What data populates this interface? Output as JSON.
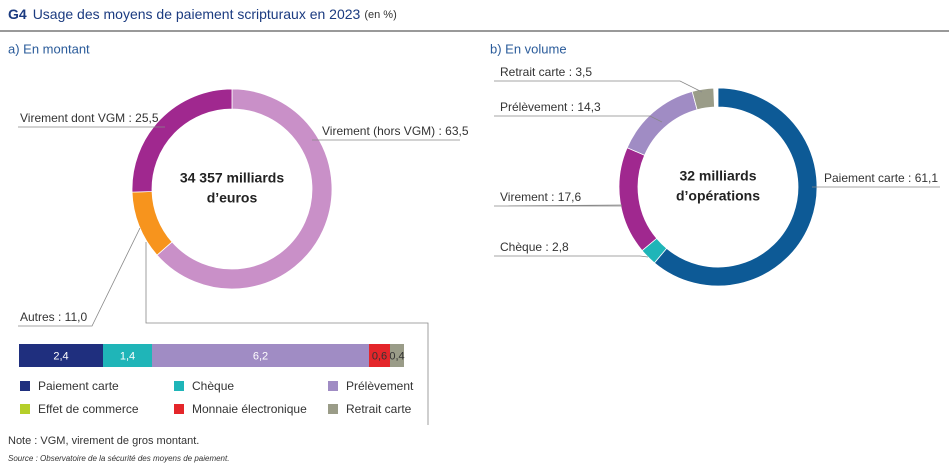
{
  "title_code": "G4",
  "title": "Usage des moyens de paiement scripturaux en 2023",
  "title_unit": "(en %)",
  "note": "Note : VGM, virement de gros montant.",
  "source": "Source : Observatoire de la sécurité des moyens de paiement.",
  "chart_data": [
    {
      "type": "donut",
      "subtitle": "a) En montant",
      "center_label": [
        "34 357 milliards",
        "d’euros"
      ],
      "categories": [
        "Virement (hors VGM) : 63,5",
        "Autres : 11,0",
        "Virement dont VGM : 25,5"
      ],
      "values": [
        63.5,
        11.0,
        25.5
      ],
      "colors": [
        "#c990c8",
        "#f7941d",
        "#a0288f"
      ]
    },
    {
      "type": "stacked-bar",
      "categories": [
        "Paiement carte",
        "Chèque",
        "Prélèvement",
        "Effet de commerce",
        "Monnaie électronique",
        "Retrait carte"
      ],
      "values": [
        2.4,
        1.4,
        6.2,
        0,
        0.6,
        0.4
      ],
      "value_labels": [
        "2,4",
        "1,4",
        "6,2",
        null,
        "0,6",
        "0,4"
      ],
      "colors": [
        "#1f2f7e",
        "#1fb5b8",
        "#a08cc4",
        "#b5cf2a",
        "#e4262a",
        "#9a9c88"
      ]
    },
    {
      "type": "donut",
      "subtitle": "b) En volume",
      "center_label": [
        "32 milliards",
        "d’opérations"
      ],
      "categories": [
        "Paiement carte : 61,1",
        "Chèque : 2,8",
        "Virement : 17,6",
        "Prélèvement : 14,3",
        "Retrait carte : 3,5"
      ],
      "values": [
        61.1,
        2.8,
        17.6,
        14.3,
        3.5
      ],
      "colors": [
        "#0d5a96",
        "#1fb5b8",
        "#a0288f",
        "#a08cc4",
        "#9a9c88"
      ]
    }
  ]
}
